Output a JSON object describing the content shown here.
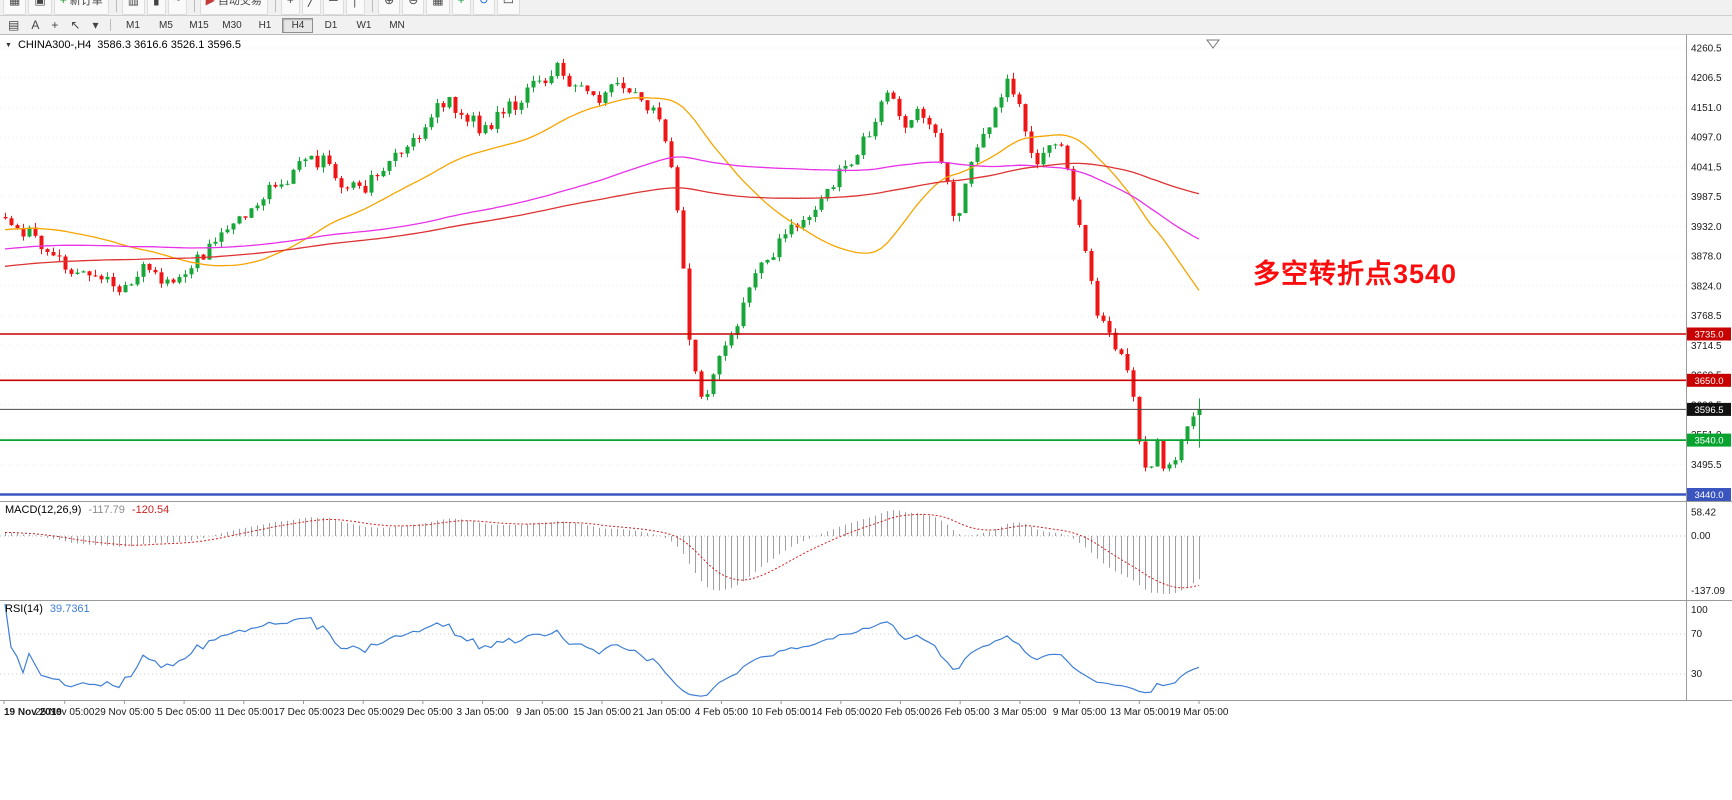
{
  "toolbar_top": {
    "items": [
      {
        "name": "charts-window",
        "glyph": "▦"
      },
      {
        "name": "market-watch",
        "glyph": "▣"
      },
      {
        "name": "new-order",
        "glyph": "+",
        "color": "#0f9d2a",
        "label": "新订单"
      },
      {
        "sep": true
      },
      {
        "name": "bar-chart-type",
        "glyph": "▥"
      },
      {
        "name": "candle-chart-type",
        "glyph": "▮"
      },
      {
        "name": "line-chart-type",
        "glyph": "~"
      },
      {
        "sep": true
      },
      {
        "name": "autotrading",
        "glyph": "▶",
        "color": "#c43b3b",
        "label": "自动交易"
      },
      {
        "sep": true
      },
      {
        "name": "crosshair",
        "glyph": "+"
      },
      {
        "name": "trendline-tool",
        "glyph": "╱"
      },
      {
        "name": "horizontal-line-tool",
        "glyph": "─"
      },
      {
        "name": "vertical-line-tool",
        "glyph": "│"
      },
      {
        "sep": true
      },
      {
        "name": "zoom-in",
        "glyph": "⊕"
      },
      {
        "name": "zoom-out",
        "glyph": "⊖"
      },
      {
        "name": "tile-windows",
        "glyph": "▦"
      },
      {
        "name": "indicators-add",
        "glyph": "+",
        "color": "#0f9d2a"
      },
      {
        "name": "refresh",
        "glyph": "↻",
        "color": "#2a6fd6"
      },
      {
        "name": "full-screen",
        "glyph": "▭"
      }
    ]
  },
  "timeframe_bar": {
    "tools": [
      {
        "name": "chart-list",
        "glyph": "▤"
      },
      {
        "name": "text-tool",
        "glyph": "A"
      },
      {
        "name": "crosshair-tool",
        "glyph": "+"
      },
      {
        "name": "cursor-tool",
        "glyph": "↖"
      },
      {
        "name": "objects-dropdown",
        "glyph": "▾"
      }
    ],
    "timeframes": [
      "M1",
      "M5",
      "M15",
      "M30",
      "H1",
      "H4",
      "D1",
      "W1",
      "MN"
    ],
    "active": "H4"
  },
  "chart": {
    "symbol_label": "CHINA300-,H4",
    "ohlc": "3586.3 3616.6 3526.1 3596.5",
    "annotation": {
      "text": "多空转折点3540",
      "color": "#fb0d0d"
    },
    "current_price": {
      "value": 3596.5,
      "label": "3596.5",
      "line_color": "#4a4a4a",
      "badge_color": "#111111"
    },
    "levels": [
      {
        "value": 3735.0,
        "label": "3735.0",
        "color": "#c80000",
        "width": 1.6
      },
      {
        "value": 3650.0,
        "label": "3650.0",
        "color": "#c80000",
        "width": 1.6
      },
      {
        "value": 3540.0,
        "label": "3540.0",
        "color": "#07a32f",
        "width": 1.8
      },
      {
        "value": 3440.0,
        "label": "3440.0",
        "color": "#3a55c0",
        "width": 2.4
      }
    ],
    "y_ticks": [
      4260.5,
      4206.5,
      4151.0,
      4097.0,
      4041.5,
      3987.5,
      3932.0,
      3878.0,
      3824.0,
      3768.5,
      3714.5,
      3660.5,
      3606.5,
      3551.0,
      3495.5,
      3441.0
    ]
  },
  "macd": {
    "label": "MACD(12,26,9)",
    "value_main": "-117.79",
    "value_signal": "-120.54",
    "histogram_color": "#a0a0a0",
    "signal_color": "#d22020",
    "scale": [
      {
        "label": "58.42",
        "value": 58.42
      },
      {
        "label": "0.00",
        "value": 0
      },
      {
        "label": "-137.09",
        "value": -137.09
      }
    ]
  },
  "rsi": {
    "label": "RSI(14)",
    "value": "39.7361",
    "line_color": "#3e7fd4",
    "levels": [
      70,
      30
    ],
    "scale": [
      {
        "label": "100",
        "value": 100
      },
      {
        "label": "70",
        "value": 70
      },
      {
        "label": "30",
        "value": 30
      }
    ]
  },
  "time_axis": {
    "labels": [
      "19 Nov 2019",
      "25 Nov 05:00",
      "29 Nov 05:00",
      "5 Dec 05:00",
      "11 Dec 05:00",
      "17 Dec 05:00",
      "23 Dec 05:00",
      "29 Dec 05:00",
      "3 Jan 05:00",
      "9 Jan 05:00",
      "15 Jan 05:00",
      "21 Jan 05:00",
      "4 Feb 05:00",
      "10 Feb 05:00",
      "14 Feb 05:00",
      "20 Feb 05:00",
      "26 Feb 05:00",
      "3 Mar 05:00",
      "9 Mar 05:00",
      "13 Mar 05:00",
      "19 Mar 05:00"
    ]
  },
  "chart_data": {
    "type": "candlestick",
    "symbol": "CHINA300-",
    "timeframe": "H4",
    "last_ohlc": {
      "open": 3586.3,
      "high": 3616.6,
      "low": 3526.1,
      "close": 3596.5
    },
    "up_color": "#19a639",
    "down_color": "#ed1515",
    "candle_count": 200,
    "horizontal_levels": [
      3735.0,
      3650.0,
      3540.0,
      3440.0
    ],
    "macd_values": {
      "main": -117.79,
      "signal": -120.54,
      "scale_max": 58.42,
      "scale_min": -137.09
    },
    "rsi_value": 39.7361,
    "ma": [
      {
        "name": "ma-fast",
        "period": 34,
        "color": "#f6a500"
      },
      {
        "name": "ma-medium",
        "period": 90,
        "color": "#e832e8"
      },
      {
        "name": "ma-slow",
        "period": 140,
        "color": "#dd3333"
      }
    ],
    "waypoints": [
      [
        0,
        3950
      ],
      [
        0.02,
        3918
      ],
      [
        0.05,
        3858
      ],
      [
        0.075,
        3838
      ],
      [
        0.1,
        3812
      ],
      [
        0.115,
        3856
      ],
      [
        0.13,
        3832
      ],
      [
        0.15,
        3846
      ],
      [
        0.175,
        3906
      ],
      [
        0.2,
        3956
      ],
      [
        0.225,
        4006
      ],
      [
        0.25,
        4046
      ],
      [
        0.265,
        4056
      ],
      [
        0.285,
        4008
      ],
      [
        0.3,
        4000
      ],
      [
        0.325,
        4062
      ],
      [
        0.35,
        4112
      ],
      [
        0.365,
        4166
      ],
      [
        0.378,
        4152
      ],
      [
        0.4,
        4108
      ],
      [
        0.415,
        4140
      ],
      [
        0.428,
        4158
      ],
      [
        0.45,
        4206
      ],
      [
        0.462,
        4222
      ],
      [
        0.475,
        4196
      ],
      [
        0.5,
        4166
      ],
      [
        0.512,
        4196
      ],
      [
        0.525,
        4176
      ],
      [
        0.538,
        4152
      ],
      [
        0.55,
        4118
      ],
      [
        0.558,
        4048
      ],
      [
        0.566,
        3896
      ],
      [
        0.573,
        3728
      ],
      [
        0.579,
        3642
      ],
      [
        0.586,
        3616
      ],
      [
        0.6,
        3702
      ],
      [
        0.612,
        3748
      ],
      [
        0.625,
        3830
      ],
      [
        0.65,
        3906
      ],
      [
        0.675,
        3966
      ],
      [
        0.7,
        4030
      ],
      [
        0.72,
        4092
      ],
      [
        0.735,
        4156
      ],
      [
        0.742,
        4178
      ],
      [
        0.752,
        4112
      ],
      [
        0.765,
        4142
      ],
      [
        0.776,
        4118
      ],
      [
        0.786,
        4046
      ],
      [
        0.793,
        3948
      ],
      [
        0.8,
        3968
      ],
      [
        0.812,
        4062
      ],
      [
        0.825,
        4132
      ],
      [
        0.84,
        4198
      ],
      [
        0.852,
        4132
      ],
      [
        0.862,
        4052
      ],
      [
        0.875,
        4082
      ],
      [
        0.886,
        4068
      ],
      [
        0.896,
        3978
      ],
      [
        0.906,
        3858
      ],
      [
        0.916,
        3768
      ],
      [
        0.926,
        3730
      ],
      [
        0.936,
        3698
      ],
      [
        0.945,
        3618
      ],
      [
        0.952,
        3498
      ],
      [
        0.958,
        3464
      ],
      [
        0.965,
        3546
      ],
      [
        0.972,
        3480
      ],
      [
        0.981,
        3506
      ],
      [
        0.991,
        3576
      ],
      [
        1,
        3596.5
      ]
    ]
  }
}
